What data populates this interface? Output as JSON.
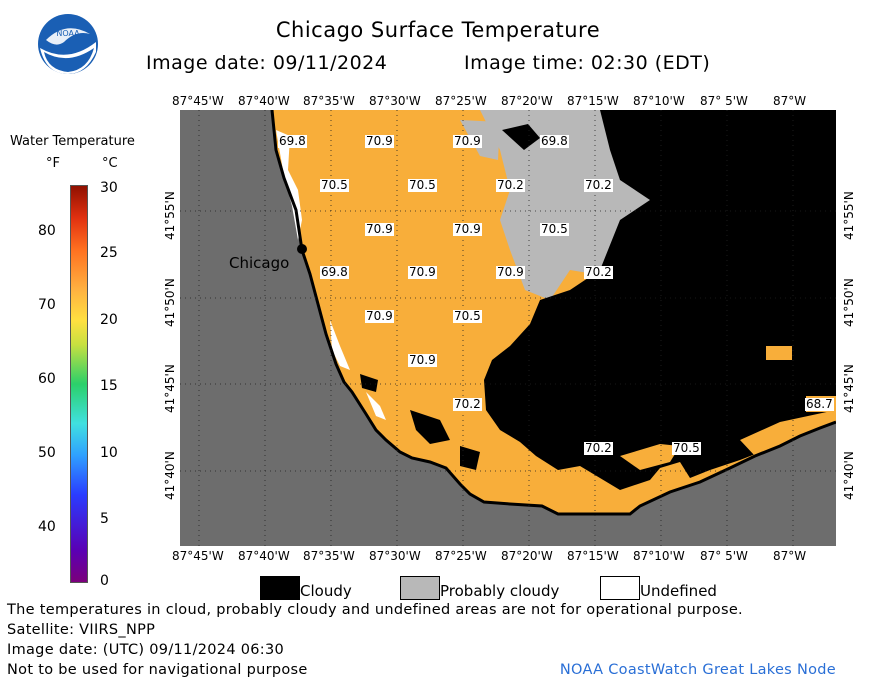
{
  "header": {
    "title": "Chicago Surface Temperature",
    "image_date": "Image date: 09/11/2024",
    "image_time": "Image time: 02:30 (EDT)"
  },
  "legend": {
    "title": "Water Temperature",
    "unit_f": "°F",
    "unit_c": "°C",
    "ticks_f": [
      "80",
      "70",
      "60",
      "50",
      "40"
    ],
    "ticks_c": [
      "30",
      "25",
      "20",
      "15",
      "10",
      "5",
      "0"
    ]
  },
  "map": {
    "lon_labels": [
      "87°45'W",
      "87°40'W",
      "87°35'W",
      "87°30'W",
      "87°25'W",
      "87°20'W",
      "87°15'W",
      "87°10'W",
      "87° 5'W",
      "87°W"
    ],
    "lat_labels": [
      "41°55'N",
      "41°50'N",
      "41°45'N",
      "41°40'N"
    ],
    "city": "Chicago",
    "values": [
      "69.8",
      "70.9",
      "70.9",
      "69.8",
      "70.5",
      "70.5",
      "70.2",
      "70.2",
      "70.9",
      "70.9",
      "70.5",
      "69.8",
      "70.9",
      "70.9",
      "70.2",
      "70.9",
      "70.5",
      "70.9",
      "70.2",
      "68.7",
      "70.2",
      "70.5"
    ],
    "colors": {
      "land": "#6d6d6d",
      "water": "#f8ae3a",
      "cloud": "#000000",
      "probably_cloudy": "#b8b8b8",
      "undefined": "#ffffff"
    }
  },
  "key": {
    "cloudy": "Cloudy",
    "probably_cloudy": "Probably cloudy",
    "undefined": "Undefined"
  },
  "footer": {
    "note": "The temperatures in cloud, probably cloudy and undefined areas are not for operational purpose.",
    "satellite": "Satellite: VIIRS_NPP",
    "utc_date": "Image date: (UTC) 09/11/2024  06:30",
    "nav": "Not to be used for navigational purpose",
    "credit": "NOAA CoastWatch Great Lakes Node"
  }
}
